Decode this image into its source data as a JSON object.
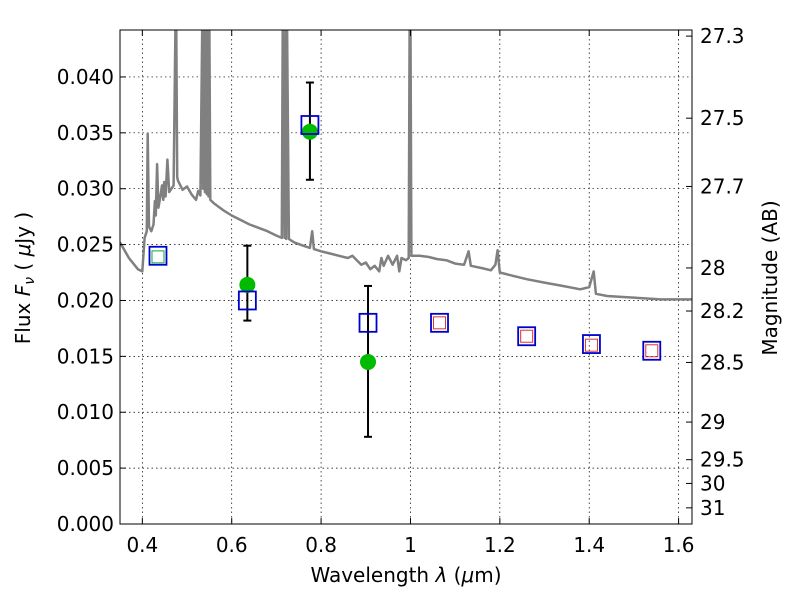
{
  "chart_data": {
    "type": "scatter",
    "xlabel": "Wavelength  λ (μm)",
    "ylabel": "Flux  F_ν  ( μJy )",
    "ylabel_parts": {
      "pre": "Flux  ",
      "F": "F",
      "nu": "ν",
      "mid": "  ( ",
      "mu": "μ",
      "post": "Jy )"
    },
    "xlabel_parts": {
      "pre": "Wavelength  ",
      "lambda": "λ",
      "mid": " (",
      "mu": "μ",
      "post": "m)"
    },
    "y2label": "Magnitude (AB)",
    "xlim": [
      0.35,
      1.63
    ],
    "ylim": [
      0.0,
      0.0442
    ],
    "xticks": [
      {
        "value": 0.4,
        "label": "0.4"
      },
      {
        "value": 0.6,
        "label": "0.6"
      },
      {
        "value": 0.8,
        "label": "0.8"
      },
      {
        "value": 1.0,
        "label": "1"
      },
      {
        "value": 1.2,
        "label": "1.2"
      },
      {
        "value": 1.4,
        "label": "1.4"
      },
      {
        "value": 1.6,
        "label": "1.6"
      }
    ],
    "yticks": [
      {
        "value": 0.0,
        "label": "0.000"
      },
      {
        "value": 0.005,
        "label": "0.005"
      },
      {
        "value": 0.01,
        "label": "0.010"
      },
      {
        "value": 0.015,
        "label": "0.015"
      },
      {
        "value": 0.02,
        "label": "0.020"
      },
      {
        "value": 0.025,
        "label": "0.025"
      },
      {
        "value": 0.03,
        "label": "0.030"
      },
      {
        "value": 0.035,
        "label": "0.035"
      },
      {
        "value": 0.04,
        "label": "0.040"
      }
    ],
    "y2ticks": [
      {
        "mag": 27.3,
        "label": "27.3"
      },
      {
        "mag": 27.5,
        "label": "27.5"
      },
      {
        "mag": 27.7,
        "label": "27.7"
      },
      {
        "mag": 28.0,
        "label": "28"
      },
      {
        "mag": 28.2,
        "label": "28.2"
      },
      {
        "mag": 28.5,
        "label": "28.5"
      },
      {
        "mag": 29.0,
        "label": "29"
      },
      {
        "mag": 29.5,
        "label": "29.5"
      },
      {
        "mag": 30.0,
        "label": "30"
      },
      {
        "mag": 31.0,
        "label": "31"
      }
    ],
    "grid": true,
    "colors": {
      "model": "#808080",
      "observed": "#00bb00",
      "model_band": "#0000cc",
      "model_band_inner": "#dd3333",
      "error_bar": "#000000"
    },
    "model_spectrum": [
      [
        0.35,
        0.0252
      ],
      [
        0.37,
        0.0238
      ],
      [
        0.39,
        0.0228
      ],
      [
        0.4,
        0.0226
      ],
      [
        0.405,
        0.0256
      ],
      [
        0.41,
        0.0262
      ],
      [
        0.412,
        0.0349
      ],
      [
        0.415,
        0.0266
      ],
      [
        0.42,
        0.0262
      ],
      [
        0.425,
        0.0268
      ],
      [
        0.428,
        0.0289
      ],
      [
        0.43,
        0.0276
      ],
      [
        0.433,
        0.0322
      ],
      [
        0.436,
        0.0283
      ],
      [
        0.44,
        0.0292
      ],
      [
        0.444,
        0.0303
      ],
      [
        0.447,
        0.029
      ],
      [
        0.449,
        0.0306
      ],
      [
        0.452,
        0.0293
      ],
      [
        0.456,
        0.0326
      ],
      [
        0.46,
        0.0297
      ],
      [
        0.465,
        0.03
      ],
      [
        0.47,
        0.0303
      ],
      [
        0.474,
        0.0442
      ],
      [
        0.476,
        0.0442
      ],
      [
        0.478,
        0.031
      ],
      [
        0.48,
        0.0307
      ],
      [
        0.49,
        0.0299
      ],
      [
        0.5,
        0.0302
      ],
      [
        0.51,
        0.0295
      ],
      [
        0.52,
        0.029
      ],
      [
        0.525,
        0.0298
      ],
      [
        0.53,
        0.0294
      ],
      [
        0.534,
        0.0442
      ],
      [
        0.536,
        0.03
      ],
      [
        0.538,
        0.0442
      ],
      [
        0.54,
        0.0297
      ],
      [
        0.542,
        0.0442
      ],
      [
        0.544,
        0.0295
      ],
      [
        0.546,
        0.0442
      ],
      [
        0.548,
        0.0293
      ],
      [
        0.55,
        0.0442
      ],
      [
        0.552,
        0.029
      ],
      [
        0.56,
        0.0287
      ],
      [
        0.58,
        0.0281
      ],
      [
        0.6,
        0.0276
      ],
      [
        0.62,
        0.0272
      ],
      [
        0.64,
        0.0268
      ],
      [
        0.66,
        0.0265
      ],
      [
        0.68,
        0.0262
      ],
      [
        0.7,
        0.0258
      ],
      [
        0.712,
        0.0256
      ],
      [
        0.714,
        0.0442
      ],
      [
        0.718,
        0.0256
      ],
      [
        0.72,
        0.0442
      ],
      [
        0.722,
        0.0255
      ],
      [
        0.724,
        0.0442
      ],
      [
        0.728,
        0.0255
      ],
      [
        0.74,
        0.0252
      ],
      [
        0.76,
        0.0249
      ],
      [
        0.775,
        0.0247
      ],
      [
        0.78,
        0.0262
      ],
      [
        0.784,
        0.0246
      ],
      [
        0.8,
        0.0244
      ],
      [
        0.82,
        0.0242
      ],
      [
        0.84,
        0.024
      ],
      [
        0.86,
        0.0238
      ],
      [
        0.87,
        0.024
      ],
      [
        0.88,
        0.0236
      ],
      [
        0.89,
        0.0232
      ],
      [
        0.9,
        0.0234
      ],
      [
        0.91,
        0.0228
      ],
      [
        0.92,
        0.0231
      ],
      [
        0.93,
        0.0226
      ],
      [
        0.935,
        0.0238
      ],
      [
        0.94,
        0.0231
      ],
      [
        0.95,
        0.024
      ],
      [
        0.96,
        0.0232
      ],
      [
        0.97,
        0.024
      ],
      [
        0.975,
        0.0226
      ],
      [
        0.98,
        0.0238
      ],
      [
        0.99,
        0.0236
      ],
      [
        0.996,
        0.0238
      ],
      [
        0.998,
        0.0442
      ],
      [
        1.0,
        0.0442
      ],
      [
        1.002,
        0.024
      ],
      [
        1.02,
        0.024
      ],
      [
        1.04,
        0.0239
      ],
      [
        1.06,
        0.0237
      ],
      [
        1.08,
        0.0236
      ],
      [
        1.1,
        0.0233
      ],
      [
        1.12,
        0.0232
      ],
      [
        1.13,
        0.0244
      ],
      [
        1.135,
        0.0231
      ],
      [
        1.16,
        0.0229
      ],
      [
        1.18,
        0.0227
      ],
      [
        1.19,
        0.0232
      ],
      [
        1.195,
        0.0245
      ],
      [
        1.2,
        0.0225
      ],
      [
        1.22,
        0.0223
      ],
      [
        1.26,
        0.0219
      ],
      [
        1.3,
        0.0216
      ],
      [
        1.34,
        0.0213
      ],
      [
        1.38,
        0.021
      ],
      [
        1.4,
        0.0212
      ],
      [
        1.41,
        0.0226
      ],
      [
        1.415,
        0.0206
      ],
      [
        1.44,
        0.0204
      ],
      [
        1.48,
        0.0203
      ],
      [
        1.52,
        0.0202
      ],
      [
        1.56,
        0.0201
      ],
      [
        1.6,
        0.0201
      ],
      [
        1.63,
        0.0201
      ]
    ],
    "series": [
      {
        "marker": "circle",
        "points": [
          {
            "x": 0.635,
            "y": 0.0214,
            "yerr": [
              0.0032,
              0.0035
            ]
          },
          {
            "x": 0.775,
            "y": 0.0351,
            "yerr": [
              0.0043,
              0.0044
            ]
          },
          {
            "x": 0.905,
            "y": 0.0145,
            "yerr": [
              0.0067,
              0.0068
            ]
          }
        ]
      },
      {
        "marker": "square",
        "points": [
          {
            "x": 0.435,
            "y": 0.024
          },
          {
            "x": 0.635,
            "y": 0.02
          },
          {
            "x": 0.775,
            "y": 0.0357
          },
          {
            "x": 0.905,
            "y": 0.018
          },
          {
            "x": 1.065,
            "y": 0.018
          },
          {
            "x": 1.26,
            "y": 0.0168
          },
          {
            "x": 1.405,
            "y": 0.0161
          },
          {
            "x": 1.54,
            "y": 0.0155
          }
        ]
      },
      {
        "marker": "square-inner",
        "points": [
          {
            "x": 0.435,
            "y": 0.0239,
            "color": "#00aa44"
          },
          {
            "x": 1.065,
            "y": 0.018,
            "color": "#dd3333"
          },
          {
            "x": 1.26,
            "y": 0.0168,
            "color": "#dd3333"
          },
          {
            "x": 1.405,
            "y": 0.016,
            "color": "#dd3333"
          },
          {
            "x": 1.54,
            "y": 0.0155,
            "color": "#dd3333"
          }
        ]
      }
    ]
  }
}
